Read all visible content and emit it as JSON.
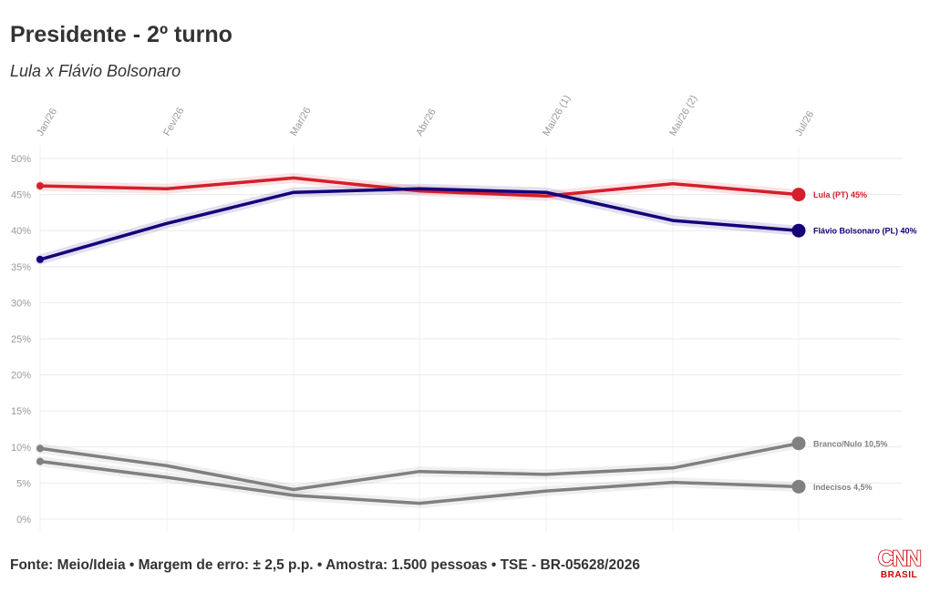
{
  "header": {
    "title": "Presidente - 2º turno",
    "subtitle": "Lula x Flávio Bolsonaro"
  },
  "footer": {
    "source": "Fonte: Meio/Ideia • Margem de erro: ± 2,5 p.p. • Amostra: 1.500 pessoas • TSE - BR-05628/2026"
  },
  "logo": {
    "main": "CNN",
    "sub": "BRASIL"
  },
  "chart_data": {
    "type": "line",
    "title": "Presidente - 2º turno",
    "subtitle": "Lula x Flávio Bolsonaro",
    "x": [
      "Jan/26",
      "Fev/26",
      "Mar/26",
      "Abr/26",
      "Mai/26 (1)",
      "Mai/26 (2)",
      "Jul/26"
    ],
    "ylim": [
      0,
      50
    ],
    "yticks": [
      0,
      5,
      10,
      15,
      20,
      25,
      30,
      35,
      40,
      45,
      50
    ],
    "ytick_suffix": "%",
    "grid": true,
    "legend": "end-labels",
    "series": [
      {
        "name": "Lula (PT)",
        "end_label": "Lula (PT) 45%",
        "color": "#d41f2c",
        "values": [
          46.2,
          45.8,
          47.3,
          45.5,
          44.8,
          46.5,
          45
        ]
      },
      {
        "name": "Flávio Bolsonaro (PL)",
        "end_label": "Flávio Bolsonaro (PL) 40%",
        "color": "#14007a",
        "values": [
          36,
          41,
          45.3,
          45.8,
          45.3,
          41.4,
          40
        ]
      },
      {
        "name": "Branco/Nulo",
        "end_label": "Branco/Nulo 10,5%",
        "color": "#808080",
        "values": [
          9.8,
          7.4,
          4.1,
          6.6,
          6.2,
          7.1,
          10.5
        ]
      },
      {
        "name": "Indecisos",
        "end_label": "Indecisos 4,5%",
        "color": "#808080",
        "values": [
          8,
          5.8,
          3.3,
          2.2,
          3.9,
          5.1,
          4.5
        ]
      }
    ]
  }
}
